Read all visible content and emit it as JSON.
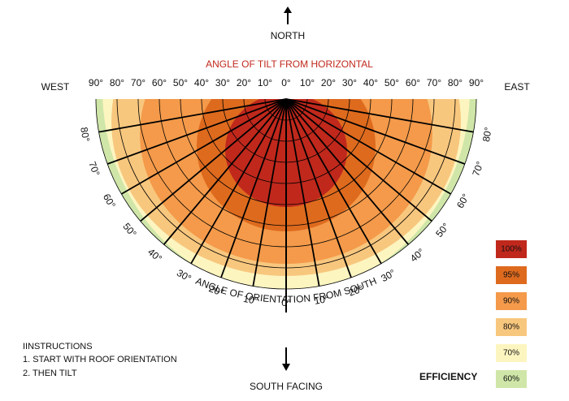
{
  "compass": {
    "north": "NORTH",
    "south": "SOUTH FACING",
    "west": "WEST",
    "east": "EAST"
  },
  "tilt_axis": {
    "title": "ANGLE OF TILT FROM HORIZONTAL",
    "labels": [
      "90°",
      "80°",
      "70°",
      "60°",
      "50°",
      "40°",
      "30°",
      "20°",
      "10°",
      "0°",
      "10°",
      "20°",
      "30°",
      "40°",
      "50°",
      "60°",
      "70°",
      "80°",
      "90°"
    ]
  },
  "orientation_axis": {
    "title": "ANGLE OF ORIENTATION FROM SOUTH",
    "labels": [
      "80°",
      "70°",
      "60°",
      "50°",
      "40°",
      "30°",
      "20°",
      "10°",
      "0°",
      "10°",
      "20°",
      "30°",
      "40°",
      "50°",
      "60°",
      "70°",
      "80°"
    ]
  },
  "instructions": {
    "title": "IINSTRUCTIONS",
    "steps": [
      "1. START WITH ROOF ORIENTATION",
      "2. THEN TILT"
    ]
  },
  "legend": {
    "title": "EFFICIENCY",
    "items": [
      {
        "label": "100%",
        "color": "#c0281c"
      },
      {
        "label": "95%",
        "color": "#de6a1e"
      },
      {
        "label": "90%",
        "color": "#f49a4a"
      },
      {
        "label": "80%",
        "color": "#f8c77e"
      },
      {
        "label": "70%",
        "color": "#fdf5c0"
      },
      {
        "label": "60%",
        "color": "#cfe6a8"
      }
    ]
  }
}
